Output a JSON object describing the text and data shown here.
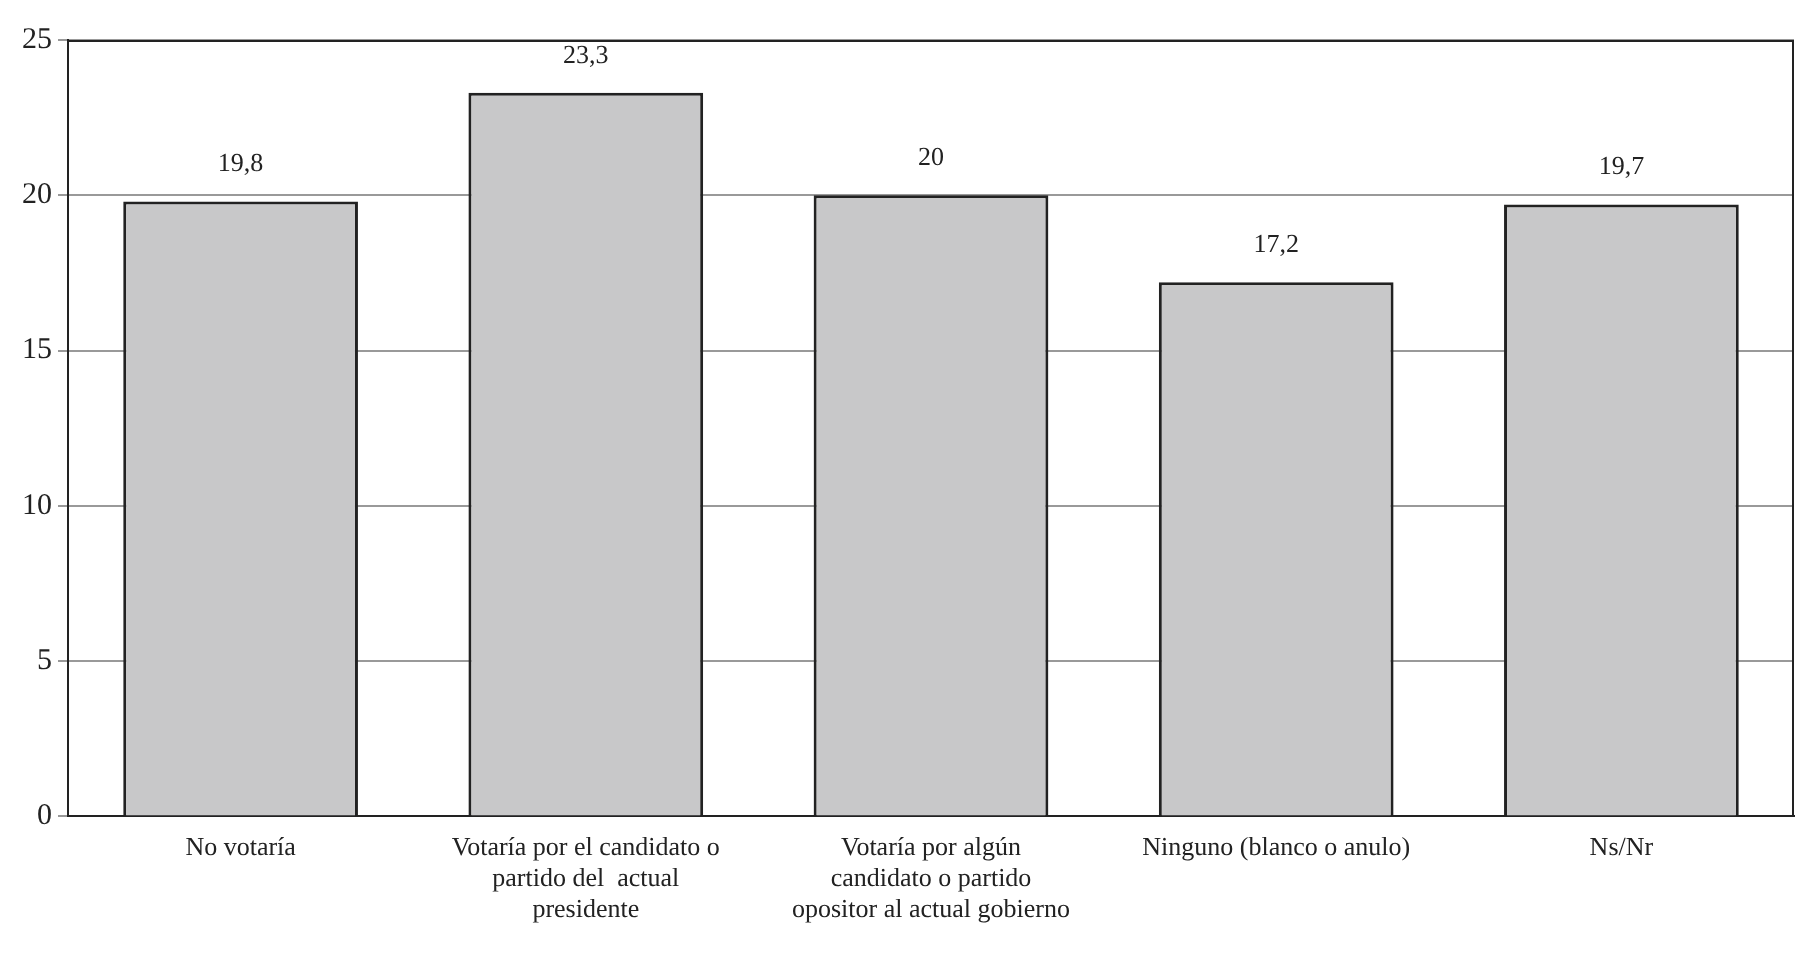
{
  "chart_data": {
    "type": "bar",
    "categories": [
      "No votaría",
      "Votaría por el candidato o partido del  actual presidente",
      "Votaría por algún candidato o partido opositor al actual gobierno",
      "Ninguno (blanco o anulo)",
      "Ns/Nr"
    ],
    "values": [
      19.8,
      23.3,
      20,
      17.2,
      19.7
    ],
    "value_labels": [
      "19,8",
      "23,3",
      "20",
      "17,2",
      "19,7"
    ],
    "color": "#c8c8c9",
    "ylim": [
      0,
      25
    ],
    "yticks": [
      0,
      5,
      10,
      15,
      20,
      25
    ],
    "grid": "y",
    "legend": false
  }
}
